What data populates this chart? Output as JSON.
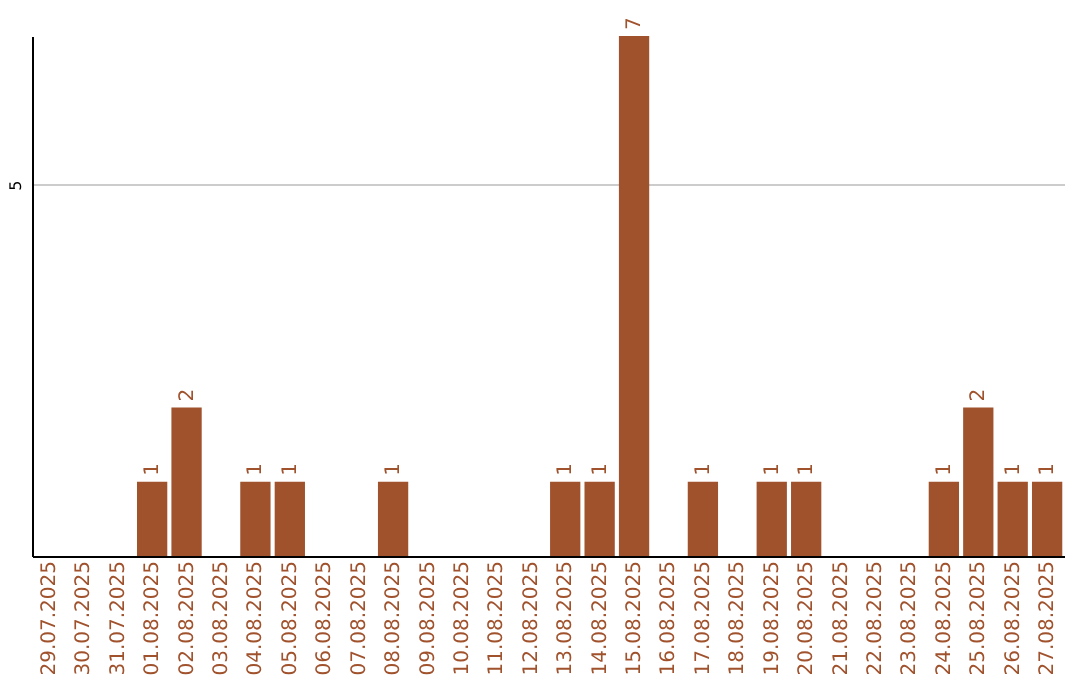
{
  "chart_data": {
    "type": "bar",
    "categories": [
      "29.07.2025",
      "30.07.2025",
      "31.07.2025",
      "01.08.2025",
      "02.08.2025",
      "03.08.2025",
      "04.08.2025",
      "05.08.2025",
      "06.08.2025",
      "07.08.2025",
      "08.08.2025",
      "09.08.2025",
      "10.08.2025",
      "11.08.2025",
      "12.08.2025",
      "13.08.2025",
      "14.08.2025",
      "15.08.2025",
      "16.08.2025",
      "17.08.2025",
      "18.08.2025",
      "19.08.2025",
      "20.08.2025",
      "21.08.2025",
      "22.08.2025",
      "23.08.2025",
      "24.08.2025",
      "25.08.2025",
      "26.08.2025",
      "27.08.2025"
    ],
    "values": [
      0,
      0,
      0,
      1,
      2,
      0,
      1,
      1,
      0,
      0,
      1,
      0,
      0,
      0,
      0,
      1,
      1,
      7,
      0,
      1,
      0,
      1,
      1,
      0,
      0,
      0,
      1,
      2,
      1,
      1
    ],
    "value_labels": [
      null,
      null,
      null,
      "1",
      "2",
      null,
      "1",
      "1",
      null,
      null,
      "1",
      null,
      null,
      null,
      null,
      "1",
      "1",
      "7",
      null,
      "1",
      null,
      "1",
      "1",
      null,
      null,
      null,
      "1",
      "2",
      "1",
      "1"
    ],
    "color": "#a0522d",
    "ylim": [
      0,
      7
    ],
    "yticks": [
      5
    ],
    "grid": "y"
  }
}
